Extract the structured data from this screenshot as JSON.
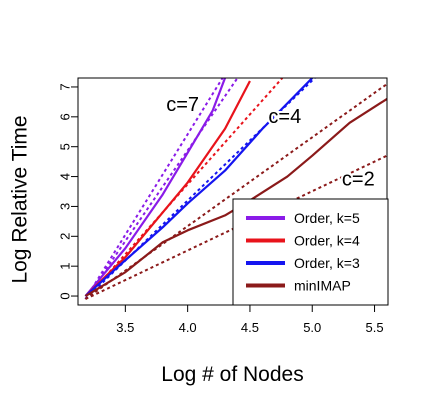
{
  "chart_data": {
    "type": "line",
    "title": "",
    "xlabel": "Log # of Nodes",
    "ylabel": "Log Relative Time",
    "xlim": [
      3.12,
      5.6
    ],
    "ylim": [
      -0.3,
      7.3
    ],
    "xticks": [
      3.5,
      4.0,
      4.5,
      5.0,
      5.5
    ],
    "xtick_labels": [
      "3.5",
      "4.0",
      "4.5",
      "5.0",
      "5.5"
    ],
    "yticks": [
      0,
      1,
      2,
      3,
      4,
      5,
      6,
      7
    ],
    "ytick_labels": [
      "0",
      "1",
      "2",
      "3",
      "4",
      "5",
      "6",
      "7"
    ],
    "grid": false,
    "legend_position": "bottom-right",
    "series": [
      {
        "name": "Order, k=5",
        "color": "#8A1BE8",
        "x": [
          3.18,
          3.5,
          3.8,
          4.0,
          4.2,
          4.3
        ],
        "y": [
          0.0,
          1.6,
          3.4,
          4.8,
          6.2,
          7.3
        ]
      },
      {
        "name": "Order, k=4",
        "color": "#E8131B",
        "x": [
          3.18,
          3.5,
          3.8,
          4.0,
          4.3,
          4.5
        ],
        "y": [
          0.0,
          1.3,
          2.8,
          3.8,
          5.6,
          7.2
        ]
      },
      {
        "name": "Order, k=3",
        "color": "#1515F0",
        "x": [
          3.18,
          3.5,
          3.8,
          4.0,
          4.3,
          4.6,
          5.0
        ],
        "y": [
          0.0,
          1.2,
          2.3,
          3.1,
          4.2,
          5.6,
          7.3
        ]
      },
      {
        "name": "minIMAP",
        "color": "#8B1A1A",
        "x": [
          3.18,
          3.5,
          3.8,
          4.0,
          4.3,
          4.5,
          4.8,
          5.0,
          5.3,
          5.6
        ],
        "y": [
          0.0,
          0.8,
          1.8,
          2.2,
          2.7,
          3.2,
          4.0,
          4.7,
          5.8,
          6.6
        ]
      }
    ],
    "reference_lines": [
      {
        "label": "c=7",
        "color": "#8A1BE8",
        "x": [
          3.18,
          4.28
        ],
        "y": [
          -0.1,
          7.3
        ]
      },
      {
        "label": "c=7",
        "color": "#8A1BE8",
        "x": [
          3.18,
          4.4
        ],
        "y": [
          -0.1,
          7.3
        ]
      },
      {
        "label": "c=4",
        "color": "#E8131B",
        "x": [
          3.18,
          4.76
        ],
        "y": [
          -0.1,
          7.3
        ]
      },
      {
        "label": "c=4",
        "color": "#1515F0",
        "x": [
          3.18,
          5.02
        ],
        "y": [
          -0.1,
          7.3
        ]
      },
      {
        "label": "c=2",
        "color": "#8B1A1A",
        "x": [
          3.18,
          5.6
        ],
        "y": [
          -0.1,
          7.1
        ]
      },
      {
        "label": "c=2",
        "color": "#8B1A1A",
        "x": [
          3.18,
          5.6
        ],
        "y": [
          -0.1,
          4.7
        ]
      }
    ],
    "annotations": [
      {
        "text": "c=7",
        "x": 3.96,
        "y": 6.4
      },
      {
        "text": "c=4",
        "x": 4.78,
        "y": 6.0
      },
      {
        "text": "c=2",
        "x": 5.37,
        "y": 3.9
      }
    ]
  }
}
